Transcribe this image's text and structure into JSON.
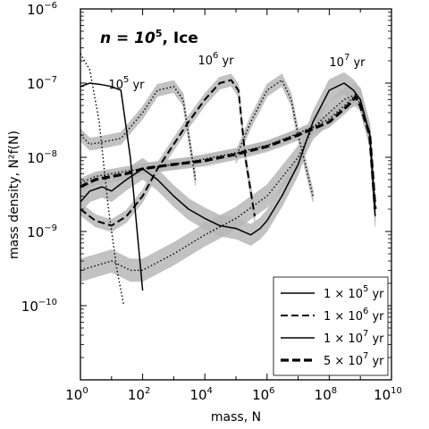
{
  "chart_data": {
    "type": "line",
    "title": "n = 10^5, Ice",
    "title_parts": {
      "prefix": "n = 10",
      "exponent": "5",
      "suffix": ", Ice"
    },
    "xlabel": "mass, N",
    "ylabel": "mass density, N²f(N)",
    "x_scale": "log",
    "y_scale": "log",
    "xlim": [
      1,
      10000000000.0
    ],
    "ylim": [
      1e-11,
      1e-06
    ],
    "x_tick_labels": [
      {
        "value": 1,
        "base": "10",
        "exp": "0"
      },
      {
        "value": 100,
        "base": "10",
        "exp": "2"
      },
      {
        "value": 10000,
        "base": "10",
        "exp": "4"
      },
      {
        "value": 1000000,
        "base": "10",
        "exp": "6"
      },
      {
        "value": 100000000,
        "base": "10",
        "exp": "8"
      },
      {
        "value": 10000000000,
        "base": "10",
        "exp": "10"
      }
    ],
    "y_tick_labels": [
      {
        "value": 1e-10,
        "base": "10",
        "exp": "−10"
      },
      {
        "value": 1e-09,
        "base": "10",
        "exp": "−9"
      },
      {
        "value": 1e-08,
        "base": "10",
        "exp": "−8"
      },
      {
        "value": 1e-07,
        "base": "10",
        "exp": "−7"
      },
      {
        "value": 1e-06,
        "base": "10",
        "exp": "−6"
      }
    ],
    "annotations": [
      {
        "base": "10",
        "exp": "5",
        "unit": " yr",
        "x": 8,
        "y": 8.5e-08
      },
      {
        "base": "10",
        "exp": "6",
        "unit": " yr",
        "x": 6000,
        "y": 1.8e-07
      },
      {
        "base": "10",
        "exp": "7",
        "unit": " yr",
        "x": 100000000,
        "y": 1.7e-07
      }
    ],
    "legend": {
      "position": "lower-right",
      "entries": [
        {
          "coef": "1 × 10",
          "exp": "5",
          "unit": " yr",
          "style": "solid"
        },
        {
          "coef": "1 × 10",
          "exp": "6",
          "unit": " yr",
          "style": "dashed"
        },
        {
          "coef": "1 × 10",
          "exp": "7",
          "unit": " yr",
          "style": "solid"
        },
        {
          "coef": "5 × 10",
          "exp": "7",
          "unit": " yr",
          "style": "thick-dashed"
        }
      ]
    },
    "series": [
      {
        "label": "1 × 10^5 yr",
        "style": "solid",
        "x": [
          1,
          2,
          5,
          10,
          20,
          40,
          100
        ],
        "y": [
          9e-08,
          1e-07,
          9.5e-08,
          9e-08,
          8e-08,
          1e-08,
          1.6e-10
        ]
      },
      {
        "label": "1 × 10^5 yr (dotted)",
        "style": "dotted",
        "x": [
          1,
          2,
          4,
          8,
          15,
          25
        ],
        "y": [
          2.5e-07,
          1.5e-07,
          3e-08,
          2e-09,
          3e-10,
          1e-10
        ]
      },
      {
        "label": "1 × 10^6 yr",
        "style": "dashed",
        "band": 0.08,
        "x": [
          1,
          3,
          10,
          30,
          100,
          300,
          1000,
          3000,
          10000,
          30000,
          70000,
          120000,
          200000,
          400000
        ],
        "y": [
          2e-09,
          1.4e-09,
          1.2e-09,
          1.6e-09,
          3e-09,
          7e-09,
          1.5e-08,
          3e-08,
          6e-08,
          1e-07,
          1.1e-07,
          8e-08,
          1e-08,
          1.6e-09
        ]
      },
      {
        "label": "1 × 10^6 yr (dotted)",
        "style": "dotted",
        "band": 0.08,
        "x": [
          1,
          2,
          5,
          20,
          100,
          300,
          1000,
          2000,
          3000,
          5000
        ],
        "y": [
          2e-08,
          1.5e-08,
          1.6e-08,
          1.8e-08,
          4e-08,
          8e-08,
          9e-08,
          6e-08,
          2e-08,
          5e-09
        ]
      },
      {
        "label": "1 × 10^7 yr",
        "style": "solid",
        "band": 0.14,
        "x": [
          1,
          2,
          5,
          10,
          30,
          100,
          300,
          1000,
          3000,
          10000,
          30000,
          100000,
          300000,
          600000,
          1000000,
          3000000,
          10000000,
          30000000,
          100000000,
          300000000,
          600000000,
          1000000000,
          2000000000,
          3000000000
        ],
        "y": [
          2.5e-09,
          3.5e-09,
          4e-09,
          3.5e-09,
          5e-09,
          7e-09,
          5e-09,
          3e-09,
          2e-09,
          1.5e-09,
          1.2e-09,
          1.1e-09,
          9e-10,
          1.1e-09,
          1.4e-09,
          3e-09,
          8e-09,
          3e-08,
          8e-08,
          1e-07,
          8e-08,
          6e-08,
          2e-08,
          1.6e-09
        ]
      },
      {
        "label": "1 × 10^7 yr (dotted)",
        "style": "dotted",
        "band": 0.15,
        "x": [
          1,
          10,
          40,
          100,
          1000,
          10000,
          100000,
          1000000,
          10000000,
          30000000,
          100000000,
          300000000,
          700000000,
          1000000000,
          2000000000,
          3000000000
        ],
        "y": [
          3e-10,
          4e-10,
          3e-10,
          3e-10,
          5e-10,
          9e-10,
          1.5e-09,
          3e-09,
          1e-08,
          2.5e-08,
          4e-08,
          6e-08,
          7e-08,
          6e-08,
          2e-08,
          2e-09
        ]
      },
      {
        "label": "1 × 10^6 yr (dotted, peak)",
        "style": "dotted",
        "band": 0.08,
        "x": [
          100000,
          300000,
          1000000,
          3000000,
          6000000,
          10000000,
          30000000
        ],
        "y": [
          1e-08,
          3e-08,
          8e-08,
          1.1e-07,
          6e-08,
          2e-08,
          3e-09
        ]
      },
      {
        "label": "5 × 10^7 yr",
        "style": "thick-dashed",
        "band": 0.07,
        "x": [
          1,
          3,
          10,
          30,
          100,
          300,
          1000,
          10000,
          100000,
          1000000,
          10000000,
          100000000,
          400000000,
          700000000,
          1000000000,
          2000000000,
          3000000000
        ],
        "y": [
          4e-09,
          5e-09,
          5.5e-09,
          6e-09,
          7e-09,
          7.5e-09,
          8e-09,
          9e-09,
          1.1e-08,
          1.4e-08,
          2e-08,
          3e-08,
          5e-08,
          6.5e-08,
          5e-08,
          2e-08,
          2e-09
        ]
      },
      {
        "label": "5 × 10^7 yr (dotted)",
        "style": "dotted",
        "band": 0.06,
        "x": [
          1,
          3,
          10,
          30,
          100,
          1000,
          10000,
          100000,
          1000000,
          10000000,
          100000000,
          400000000,
          700000000,
          1000000000,
          2000000000,
          3000000000
        ],
        "y": [
          4.5e-09,
          5.5e-09,
          6e-09,
          6.5e-09,
          7e-09,
          8e-09,
          9.5e-09,
          1.15e-08,
          1.45e-08,
          2.1e-08,
          3.3e-08,
          5.5e-08,
          6.8e-08,
          5.2e-08,
          2.2e-08,
          2.2e-09
        ]
      }
    ]
  }
}
